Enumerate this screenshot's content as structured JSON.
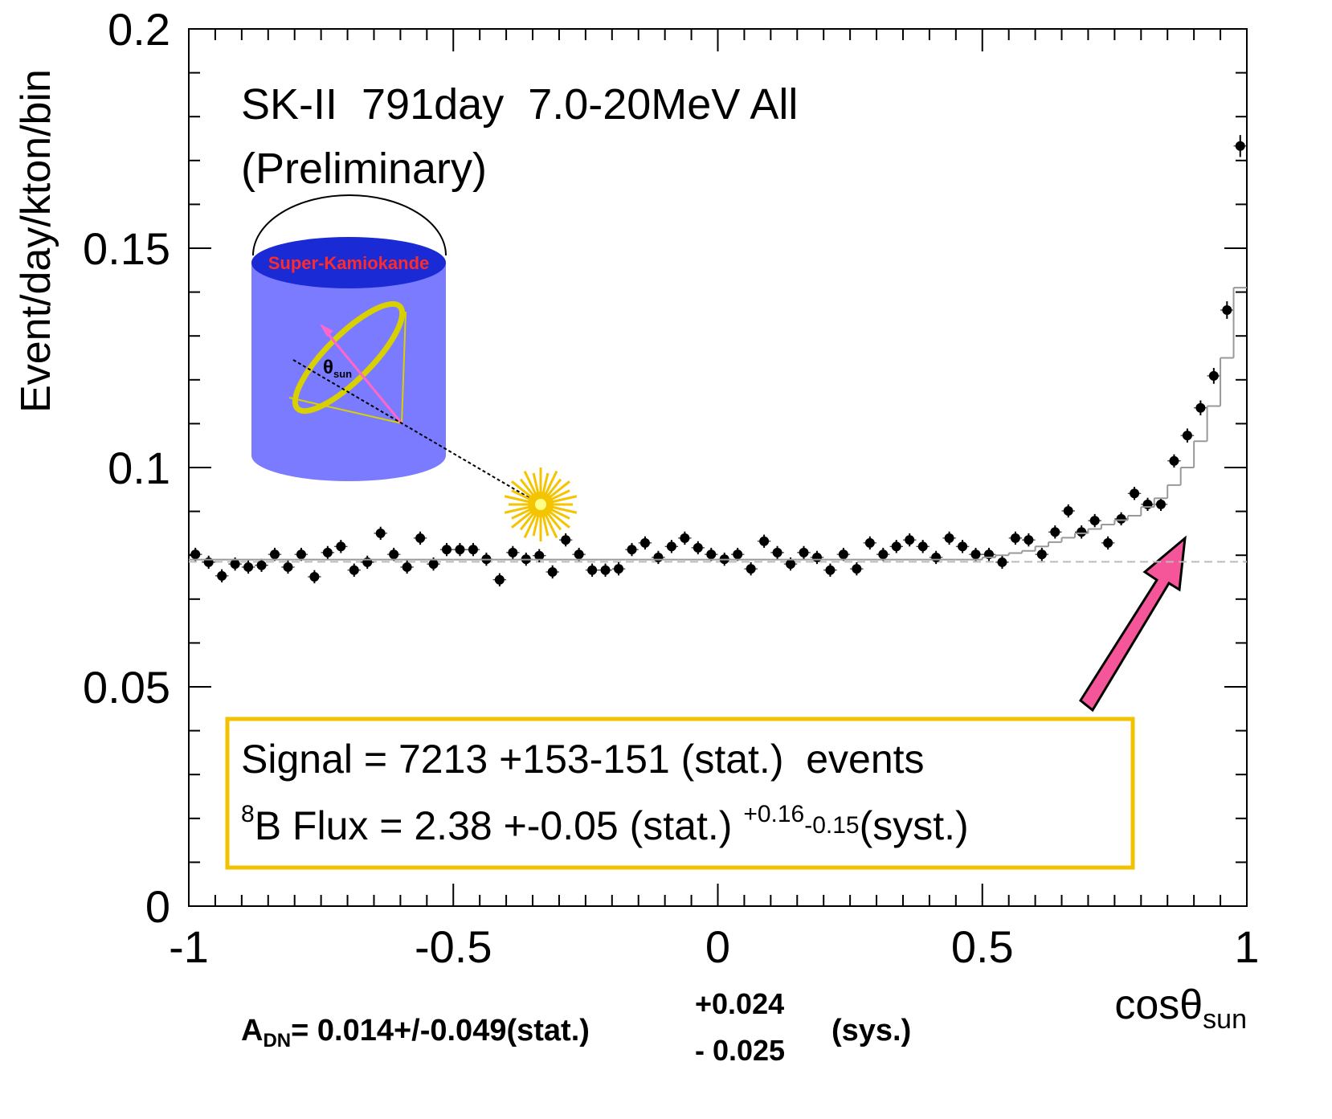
{
  "chart_data": {
    "type": "scatter",
    "title": "SK-II  791day  7.0-20MeV All",
    "subtitle": "(Preliminary)",
    "y_label": "Event/day/kton/bin",
    "x_label": {
      "text": "cosθ",
      "sub": "sun"
    },
    "xlim": [
      -1,
      1
    ],
    "ylim": [
      0,
      0.2
    ],
    "xticks": [
      -1,
      -0.5,
      0,
      0.5,
      1
    ],
    "yticks": [
      0,
      0.05,
      0.1,
      0.15,
      0.2
    ],
    "x": [
      -0.9875,
      -0.9625,
      -0.9375,
      -0.9125,
      -0.8875,
      -0.8625,
      -0.8375,
      -0.8125,
      -0.7875,
      -0.7625,
      -0.7375,
      -0.7125,
      -0.6875,
      -0.6625,
      -0.6375,
      -0.6125,
      -0.5875,
      -0.5625,
      -0.5375,
      -0.5125,
      -0.4875,
      -0.4625,
      -0.4375,
      -0.4125,
      -0.3875,
      -0.3625,
      -0.3375,
      -0.3125,
      -0.2875,
      -0.2625,
      -0.2375,
      -0.2125,
      -0.1875,
      -0.1625,
      -0.1375,
      -0.1125,
      -0.0875,
      -0.0625,
      -0.0375,
      -0.0125,
      0.0125,
      0.0375,
      0.0625,
      0.0875,
      0.1125,
      0.1375,
      0.1625,
      0.1875,
      0.2125,
      0.2375,
      0.2625,
      0.2875,
      0.3125,
      0.3375,
      0.3625,
      0.3875,
      0.4125,
      0.4375,
      0.4625,
      0.4875,
      0.5125,
      0.5375,
      0.5625,
      0.5875,
      0.6125,
      0.6375,
      0.6625,
      0.6875,
      0.7125,
      0.7375,
      0.7625,
      0.7875,
      0.8125,
      0.8375,
      0.8625,
      0.8875,
      0.9125,
      0.9375,
      0.9625,
      0.9875
    ],
    "series": [
      {
        "color": "#000000",
        "style": "points",
        "values": [
          0.0802,
          0.0784,
          0.0753,
          0.078,
          0.0773,
          0.0777,
          0.0802,
          0.0773,
          0.0802,
          0.0751,
          0.0806,
          0.082,
          0.0766,
          0.0784,
          0.085,
          0.0802,
          0.0773,
          0.0839,
          0.078,
          0.0813,
          0.0813,
          0.0813,
          0.0791,
          0.0744,
          0.0806,
          0.0791,
          0.0799,
          0.0762,
          0.0835,
          0.0802,
          0.0766,
          0.0766,
          0.0769,
          0.0813,
          0.0828,
          0.0795,
          0.082,
          0.0839,
          0.0817,
          0.0802,
          0.0791,
          0.0802,
          0.0769,
          0.0832,
          0.0806,
          0.078,
          0.0806,
          0.0795,
          0.0766,
          0.0802,
          0.0769,
          0.0828,
          0.0802,
          0.082,
          0.0835,
          0.082,
          0.0795,
          0.0839,
          0.082,
          0.0802,
          0.0802,
          0.0784,
          0.0839,
          0.0835,
          0.0802,
          0.0853,
          0.0901,
          0.0853,
          0.0879,
          0.0828,
          0.0883,
          0.0941,
          0.0916,
          0.0916,
          0.1015,
          0.1073,
          0.1136,
          0.1209,
          0.1359,
          0.1733
        ],
        "errors": [
          0.0015,
          0.0015,
          0.0015,
          0.0015,
          0.0015,
          0.0015,
          0.0015,
          0.0015,
          0.0015,
          0.0015,
          0.0015,
          0.0015,
          0.0015,
          0.0015,
          0.0015,
          0.0015,
          0.0015,
          0.0015,
          0.0015,
          0.0015,
          0.0015,
          0.0015,
          0.0015,
          0.0015,
          0.0015,
          0.0015,
          0.0015,
          0.0015,
          0.0015,
          0.0015,
          0.0015,
          0.0015,
          0.0015,
          0.0015,
          0.0015,
          0.0015,
          0.0015,
          0.0015,
          0.0015,
          0.0015,
          0.0015,
          0.0015,
          0.0015,
          0.0015,
          0.0015,
          0.0015,
          0.0015,
          0.0015,
          0.0015,
          0.0015,
          0.0015,
          0.0015,
          0.0015,
          0.0015,
          0.0015,
          0.0015,
          0.0015,
          0.0015,
          0.0015,
          0.0015,
          0.0015,
          0.0015,
          0.0015,
          0.0015,
          0.0015,
          0.0015,
          0.0015,
          0.0015,
          0.0015,
          0.0015,
          0.0015,
          0.0015,
          0.0015,
          0.0015,
          0.0015,
          0.0016,
          0.0017,
          0.0018,
          0.002,
          0.0025
        ]
      },
      {
        "color": "#999999",
        "style": "step",
        "values": [
          0.079,
          0.079,
          0.079,
          0.079,
          0.079,
          0.079,
          0.079,
          0.079,
          0.079,
          0.079,
          0.079,
          0.079,
          0.079,
          0.079,
          0.079,
          0.079,
          0.079,
          0.079,
          0.079,
          0.079,
          0.079,
          0.079,
          0.079,
          0.079,
          0.079,
          0.079,
          0.079,
          0.079,
          0.079,
          0.079,
          0.079,
          0.079,
          0.079,
          0.079,
          0.079,
          0.079,
          0.079,
          0.079,
          0.079,
          0.079,
          0.079,
          0.079,
          0.079,
          0.079,
          0.079,
          0.079,
          0.079,
          0.079,
          0.079,
          0.079,
          0.079,
          0.079,
          0.079,
          0.079,
          0.079,
          0.079,
          0.079,
          0.079,
          0.079,
          0.079,
          0.0795,
          0.08,
          0.0805,
          0.081,
          0.082,
          0.083,
          0.084,
          0.085,
          0.086,
          0.087,
          0.088,
          0.089,
          0.091,
          0.093,
          0.096,
          0.1,
          0.106,
          0.114,
          0.125,
          0.141
        ]
      }
    ],
    "reference_line": 0.0785,
    "detector_label": "Super-Kamiokande",
    "angle_label": {
      "text": "θ",
      "sub": "sun"
    },
    "signal_text": "Signal = 7213 +153-151 (stat.)  events",
    "flux_text": {
      "sup": "8",
      "main": "B Flux = 2.38 +-0.05 (stat.) ",
      "plus": "+0.16",
      "minus": "-0.15",
      "end": "(syst.)"
    },
    "asymmetry_text": {
      "main": "A",
      "sub": "DN",
      "rest": "= 0.014+/-0.049(stat.)",
      "plus": "+0.024",
      "minus": "- 0.025",
      "end": "(sys.)"
    }
  }
}
